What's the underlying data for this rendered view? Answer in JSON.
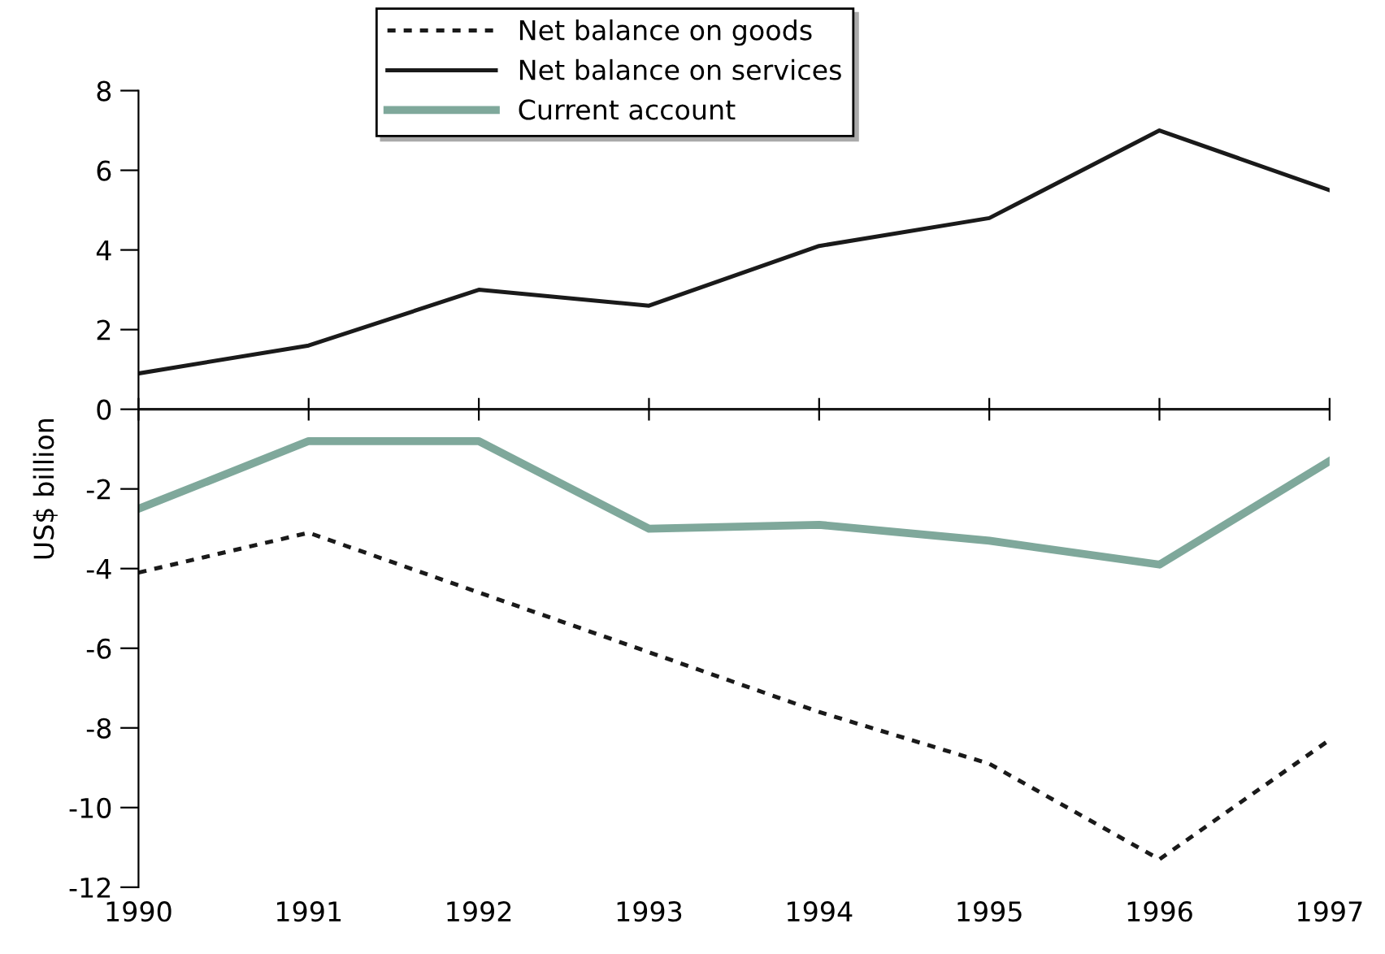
{
  "chart_data": {
    "type": "line",
    "ylabel": "US$ billion",
    "x": [
      1990,
      1991,
      1992,
      1993,
      1994,
      1995,
      1996,
      1997
    ],
    "series": [
      {
        "name": "Net balance on goods",
        "color": "#1a1a1a",
        "line_style": "dotted",
        "values": [
          -4.1,
          -3.1,
          -4.6,
          -6.1,
          -7.6,
          -8.9,
          -11.3,
          -8.3
        ]
      },
      {
        "name": "Net balance on services",
        "color": "#1a1a1a",
        "line_style": "solid",
        "values": [
          0.9,
          1.6,
          3.0,
          2.6,
          4.1,
          4.8,
          7.0,
          5.5
        ]
      },
      {
        "name": "Current account",
        "color": "#7fa89b",
        "line_style": "solid",
        "values": [
          -2.5,
          -0.8,
          -0.8,
          -3.0,
          -2.9,
          -3.3,
          -3.9,
          -1.3
        ]
      }
    ],
    "xlim": [
      1990,
      1997
    ],
    "xticks": [
      1990,
      1991,
      1992,
      1993,
      1994,
      1995,
      1996,
      1997
    ],
    "ylim": [
      -12,
      8
    ],
    "yticks": [
      -12,
      -10,
      -8,
      -6,
      -4,
      -2,
      0,
      2,
      4,
      6,
      8
    ],
    "ref_lines": [
      {
        "axis": "y",
        "value": 0,
        "color": "#1a1a1a"
      }
    ],
    "grid": false,
    "legend": "top",
    "marker": "none"
  }
}
